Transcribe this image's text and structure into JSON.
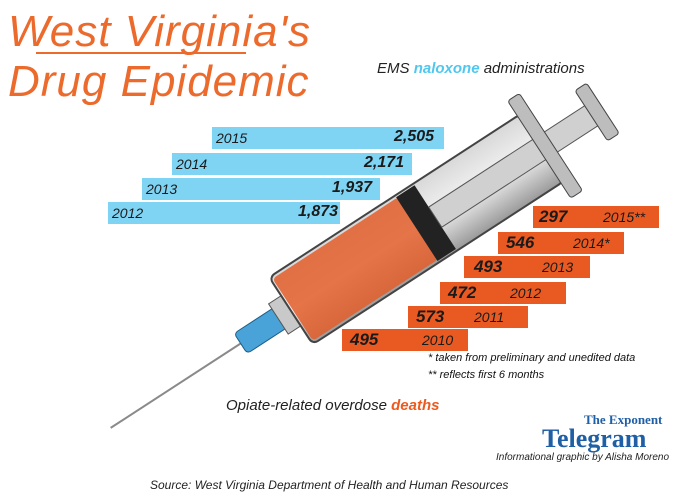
{
  "title": {
    "line1": "West Virginia's",
    "line2": "Drug Epidemic"
  },
  "labels": {
    "naloxone_prefix": "EMS ",
    "naloxone_highlight": "naloxone",
    "naloxone_suffix": " administrations",
    "deaths_prefix": "Opiate-related overdose ",
    "deaths_highlight": "deaths"
  },
  "notes": {
    "note1": "* taken from preliminary and unedited data",
    "note2": "** reflects first 6 months"
  },
  "brand": {
    "top": "The Exponent",
    "main": "Telegram"
  },
  "credit": "Informational graphic by Alisha Moreno",
  "source": "Source: West Virginia Department of Health and Human Resources",
  "colors": {
    "naloxone": "#7fd3f3",
    "deaths": "#e85a22",
    "title": "#ec6a2c",
    "brand": "#1f5fa6"
  },
  "chart_data": [
    {
      "type": "bar",
      "orientation": "horizontal",
      "title": "EMS naloxone administrations",
      "categories": [
        "2015",
        "2014",
        "2013",
        "2012"
      ],
      "display_values": [
        "2,505",
        "2,171",
        "1,937",
        "1,873"
      ],
      "values": [
        2505,
        2171,
        1937,
        1873
      ]
    },
    {
      "type": "bar",
      "orientation": "horizontal",
      "title": "Opiate-related overdose deaths",
      "categories": [
        "2015**",
        "2014*",
        "2013",
        "2012",
        "2011",
        "2010"
      ],
      "display_values": [
        "297",
        "546",
        "493",
        "472",
        "573",
        "495"
      ],
      "values": [
        297,
        546,
        493,
        472,
        573,
        495
      ]
    }
  ]
}
